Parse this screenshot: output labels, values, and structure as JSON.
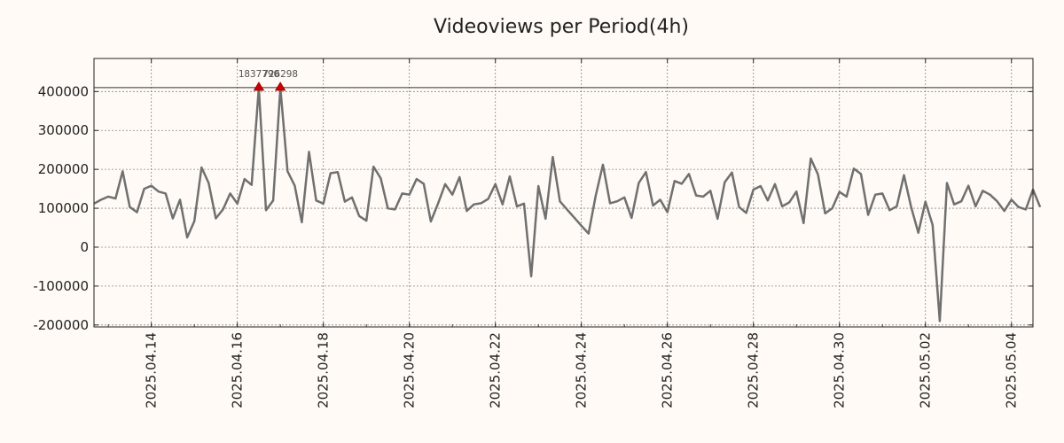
{
  "chart_data": {
    "type": "line",
    "title": "Videoviews per Period(4h)",
    "xlabel": "",
    "ylabel": "",
    "x_range": [
      "2025-04-12T16:00",
      "2025-05-04T12:00"
    ],
    "ylim": [
      -205000,
      485000
    ],
    "y_ticks": [
      400000,
      300000,
      200000,
      100000,
      0,
      -100000,
      -200000
    ],
    "y_tick_labels": [
      "400000",
      "300000",
      "200000",
      "100000",
      "0",
      "-100000",
      "-200000"
    ],
    "x_ticks": [
      "2025-04-14",
      "2025-04-16",
      "2025-04-18",
      "2025-04-20",
      "2025-04-22",
      "2025-04-24",
      "2025-04-26",
      "2025-04-28",
      "2025-04-30",
      "2025-05-02",
      "2025-05-04"
    ],
    "x_tick_labels": [
      "2025.04.14",
      "2025.04.16",
      "2025.04.18",
      "2025.04.20",
      "2025.04.22",
      "2025.04.24",
      "2025.04.26",
      "2025.04.28",
      "2025.04.30",
      "2025.05.02",
      "2025.05.04"
    ],
    "grid": true,
    "reference_line": 410000,
    "series": [
      {
        "color": "#707070",
        "points": [
          [
            "2025-04-12T16:00",
            112000
          ],
          [
            "2025-04-12T20:00",
            122000
          ],
          [
            "2025-04-13T00:00",
            130000
          ],
          [
            "2025-04-13T04:00",
            125000
          ],
          [
            "2025-04-13T08:00",
            195000
          ],
          [
            "2025-04-13T12:00",
            103000
          ],
          [
            "2025-04-13T16:00",
            90000
          ],
          [
            "2025-04-13T20:00",
            150000
          ],
          [
            "2025-04-14T00:00",
            158000
          ],
          [
            "2025-04-14T04:00",
            143000
          ],
          [
            "2025-04-14T08:00",
            138000
          ],
          [
            "2025-04-14T12:00",
            74000
          ],
          [
            "2025-04-14T16:00",
            122000
          ],
          [
            "2025-04-14T20:00",
            25000
          ],
          [
            "2025-04-15T00:00",
            67000
          ],
          [
            "2025-04-15T04:00",
            205000
          ],
          [
            "2025-04-15T08:00",
            165000
          ],
          [
            "2025-04-15T12:00",
            74000
          ],
          [
            "2025-04-15T16:00",
            97000
          ],
          [
            "2025-04-15T20:00",
            138000
          ],
          [
            "2025-04-16T00:00",
            112000
          ],
          [
            "2025-04-16T04:00",
            175000
          ],
          [
            "2025-04-16T08:00",
            160000
          ],
          [
            "2025-04-16T12:00",
            410000
          ],
          [
            "2025-04-16T16:00",
            95000
          ],
          [
            "2025-04-16T20:00",
            120000
          ],
          [
            "2025-04-17T00:00",
            410000
          ],
          [
            "2025-04-17T04:00",
            195000
          ],
          [
            "2025-04-17T08:00",
            158000
          ],
          [
            "2025-04-17T12:00",
            64000
          ],
          [
            "2025-04-17T16:00",
            245000
          ],
          [
            "2025-04-17T20:00",
            120000
          ],
          [
            "2025-04-18T00:00",
            112000
          ],
          [
            "2025-04-18T04:00",
            190000
          ],
          [
            "2025-04-18T08:00",
            193000
          ],
          [
            "2025-04-18T12:00",
            117000
          ],
          [
            "2025-04-18T16:00",
            128000
          ],
          [
            "2025-04-18T20:00",
            80000
          ],
          [
            "2025-04-19T00:00",
            68000
          ],
          [
            "2025-04-19T04:00",
            207000
          ],
          [
            "2025-04-19T08:00",
            177000
          ],
          [
            "2025-04-19T12:00",
            100000
          ],
          [
            "2025-04-19T16:00",
            97000
          ],
          [
            "2025-04-19T20:00",
            138000
          ],
          [
            "2025-04-20T00:00",
            135000
          ],
          [
            "2025-04-20T04:00",
            175000
          ],
          [
            "2025-04-20T08:00",
            163000
          ],
          [
            "2025-04-20T12:00",
            66000
          ],
          [
            "2025-04-20T16:00",
            112000
          ],
          [
            "2025-04-20T20:00",
            162000
          ],
          [
            "2025-04-21T00:00",
            135000
          ],
          [
            "2025-04-21T04:00",
            180000
          ],
          [
            "2025-04-21T08:00",
            93000
          ],
          [
            "2025-04-21T12:00",
            110000
          ],
          [
            "2025-04-21T16:00",
            113000
          ],
          [
            "2025-04-21T20:00",
            124000
          ],
          [
            "2025-04-22T00:00",
            162000
          ],
          [
            "2025-04-22T04:00",
            110000
          ],
          [
            "2025-04-22T08:00",
            182000
          ],
          [
            "2025-04-22T12:00",
            105000
          ],
          [
            "2025-04-22T16:00",
            112000
          ],
          [
            "2025-04-22T20:00",
            -75000
          ],
          [
            "2025-04-23T00:00",
            157000
          ],
          [
            "2025-04-23T04:00",
            73000
          ],
          [
            "2025-04-23T08:00",
            232000
          ],
          [
            "2025-04-23T12:00",
            118000
          ],
          [
            "2025-04-23T16:00",
            97000
          ],
          [
            "2025-04-23T20:00",
            76000
          ],
          [
            "2025-04-24T00:00",
            55000
          ],
          [
            "2025-04-24T04:00",
            35000
          ],
          [
            "2025-04-24T08:00",
            133000
          ],
          [
            "2025-04-24T12:00",
            212000
          ],
          [
            "2025-04-24T16:00",
            113000
          ],
          [
            "2025-04-24T20:00",
            118000
          ],
          [
            "2025-04-25T00:00",
            128000
          ],
          [
            "2025-04-25T04:00",
            75000
          ],
          [
            "2025-04-25T08:00",
            165000
          ],
          [
            "2025-04-25T12:00",
            193000
          ],
          [
            "2025-04-25T16:00",
            107000
          ],
          [
            "2025-04-25T20:00",
            122000
          ],
          [
            "2025-04-26T00:00",
            90000
          ],
          [
            "2025-04-26T04:00",
            170000
          ],
          [
            "2025-04-26T08:00",
            163000
          ],
          [
            "2025-04-26T12:00",
            188000
          ],
          [
            "2025-04-26T16:00",
            133000
          ],
          [
            "2025-04-26T20:00",
            130000
          ],
          [
            "2025-04-27T00:00",
            145000
          ],
          [
            "2025-04-27T04:00",
            73000
          ],
          [
            "2025-04-27T08:00",
            167000
          ],
          [
            "2025-04-27T12:00",
            192000
          ],
          [
            "2025-04-27T16:00",
            103000
          ],
          [
            "2025-04-27T20:00",
            88000
          ],
          [
            "2025-04-28T00:00",
            148000
          ],
          [
            "2025-04-28T04:00",
            157000
          ],
          [
            "2025-04-28T08:00",
            120000
          ],
          [
            "2025-04-28T12:00",
            162000
          ],
          [
            "2025-04-28T16:00",
            105000
          ],
          [
            "2025-04-28T20:00",
            115000
          ],
          [
            "2025-04-29T00:00",
            143000
          ],
          [
            "2025-04-29T04:00",
            62000
          ],
          [
            "2025-04-29T08:00",
            228000
          ],
          [
            "2025-04-29T12:00",
            187000
          ],
          [
            "2025-04-29T16:00",
            87000
          ],
          [
            "2025-04-29T20:00",
            100000
          ],
          [
            "2025-04-30T00:00",
            142000
          ],
          [
            "2025-04-30T04:00",
            130000
          ],
          [
            "2025-04-30T08:00",
            202000
          ],
          [
            "2025-04-30T12:00",
            188000
          ],
          [
            "2025-04-30T16:00",
            83000
          ],
          [
            "2025-04-30T20:00",
            135000
          ],
          [
            "2025-05-01T00:00",
            138000
          ],
          [
            "2025-05-01T04:00",
            95000
          ],
          [
            "2025-05-01T08:00",
            105000
          ],
          [
            "2025-05-01T12:00",
            185000
          ],
          [
            "2025-05-01T16:00",
            103000
          ],
          [
            "2025-05-01T20:00",
            37000
          ],
          [
            "2025-05-02T00:00",
            117000
          ],
          [
            "2025-05-02T04:00",
            57000
          ],
          [
            "2025-05-02T08:00",
            -190000
          ],
          [
            "2025-05-02T12:00",
            165000
          ],
          [
            "2025-05-02T16:00",
            110000
          ],
          [
            "2025-05-02T20:00",
            118000
          ],
          [
            "2025-05-03T00:00",
            158000
          ],
          [
            "2025-05-03T04:00",
            105000
          ],
          [
            "2025-05-03T08:00",
            145000
          ],
          [
            "2025-05-03T12:00",
            135000
          ],
          [
            "2025-05-03T16:00",
            118000
          ],
          [
            "2025-05-03T20:00",
            93000
          ],
          [
            "2025-05-04T00:00",
            122000
          ],
          [
            "2025-05-04T04:00",
            103000
          ],
          [
            "2025-05-04T08:00",
            97000
          ],
          [
            "2025-05-04T12:00",
            148000
          ],
          [
            "2025-05-04T16:00",
            103000
          ]
        ]
      }
    ],
    "annotations": [
      {
        "x": "2025-04-16T12:00",
        "y": 410000,
        "label": "1837790"
      },
      {
        "x": "2025-04-17T00:00",
        "y": 410000,
        "label": "726298"
      }
    ]
  },
  "colors": {
    "background": "#fffaf5",
    "line": "#707070",
    "marker": "#cc0000",
    "grid": "#888888",
    "axis": "#222222"
  }
}
